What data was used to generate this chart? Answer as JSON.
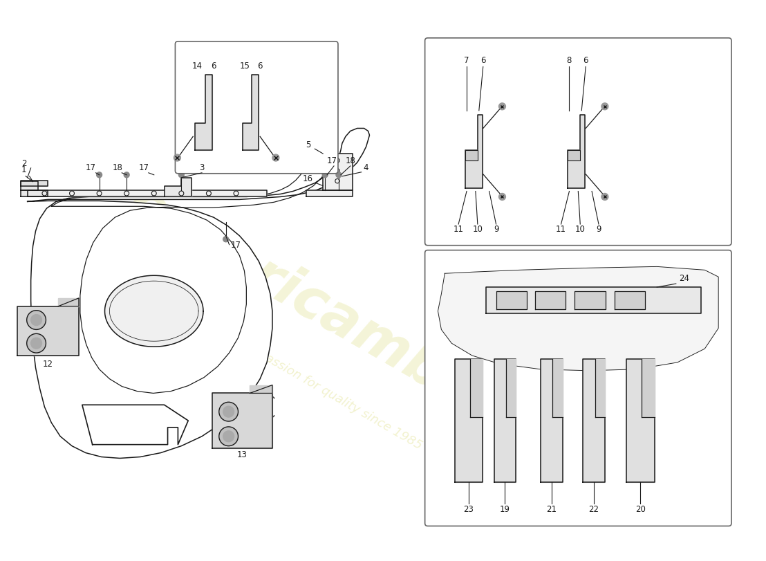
{
  "bg_color": "#ffffff",
  "line_color": "#1a1a1a",
  "watermark_text1": "euroricambi",
  "watermark_text2": "a passion for quality since 1985",
  "watermark_color": "#e8e8a8"
}
